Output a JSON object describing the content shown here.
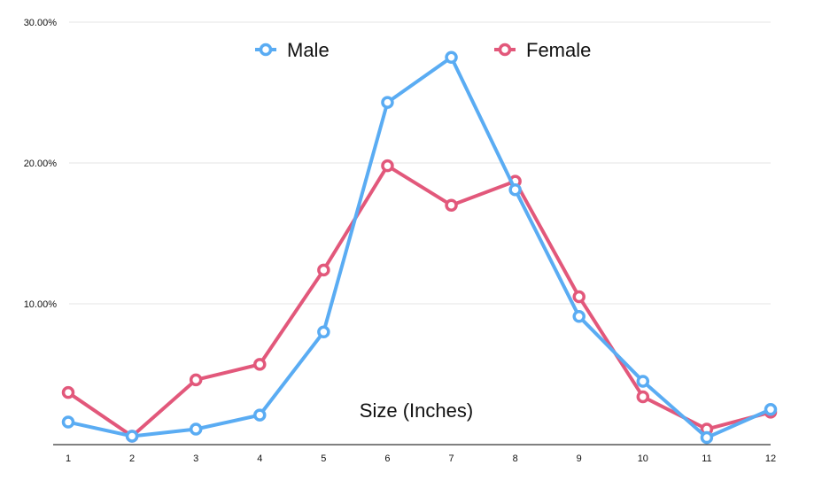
{
  "chart_data": {
    "type": "line",
    "title": "",
    "xlabel": "Size (Inches)",
    "ylabel": "",
    "x": [
      1,
      2,
      3,
      4,
      5,
      6,
      7,
      8,
      9,
      10,
      11,
      12
    ],
    "ylim": [
      0,
      30
    ],
    "yticks": [
      "",
      "10.00%",
      "20.00%",
      "30.00%"
    ],
    "ytick_values": [
      0,
      10,
      20,
      30
    ],
    "grid": true,
    "legend_placement": "top-center",
    "series": [
      {
        "name": "Male",
        "color": "#5aacf3",
        "values": [
          1.6,
          0.6,
          1.1,
          2.1,
          8.0,
          24.3,
          27.5,
          18.1,
          9.1,
          4.5,
          0.5,
          2.5
        ]
      },
      {
        "name": "Female",
        "color": "#e2587b",
        "values": [
          3.7,
          0.6,
          4.6,
          5.7,
          12.4,
          19.8,
          17.0,
          18.7,
          10.5,
          3.4,
          1.1,
          2.3
        ]
      }
    ]
  }
}
